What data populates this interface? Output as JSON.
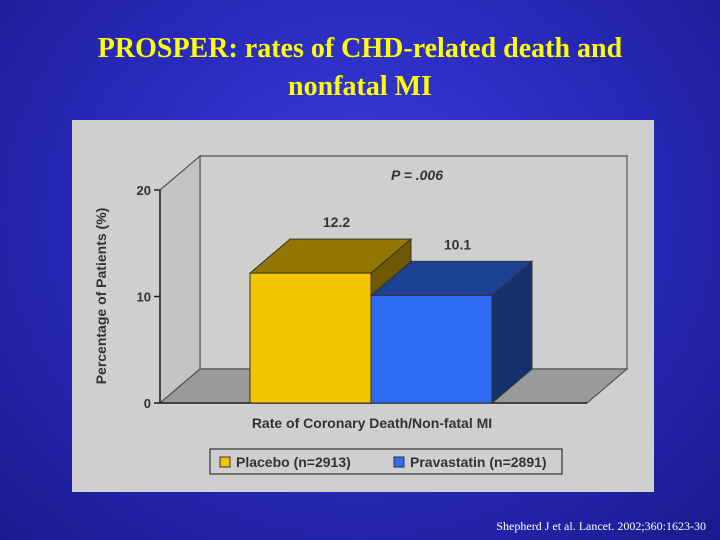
{
  "slide": {
    "title_line1": "PROSPER: rates of CHD-related death and",
    "title_line2": "nonfatal MI",
    "citation": "Shepherd J et al. Lancet. 2002;360:1623-30"
  },
  "chart_data": {
    "type": "bar",
    "title": "",
    "annotation": "P = .006",
    "xlabel": "Rate of Coronary Death/Non-fatal MI",
    "ylabel": "Percentage of Patients (%)",
    "ylim": [
      0,
      20
    ],
    "yticks": [
      0,
      10,
      20
    ],
    "categories": [
      "Rate of Coronary Death/Non-fatal MI"
    ],
    "series": [
      {
        "name": "Placebo (n=2913)",
        "values": [
          12.2
        ],
        "label": "12.2",
        "color": "#f5c400"
      },
      {
        "name": "Pravastatin (n=2891)",
        "values": [
          10.1
        ],
        "label": "10.1",
        "color": "#2f6cf5"
      }
    ],
    "legend_position": "bottom",
    "grid": false,
    "style": "3d"
  }
}
